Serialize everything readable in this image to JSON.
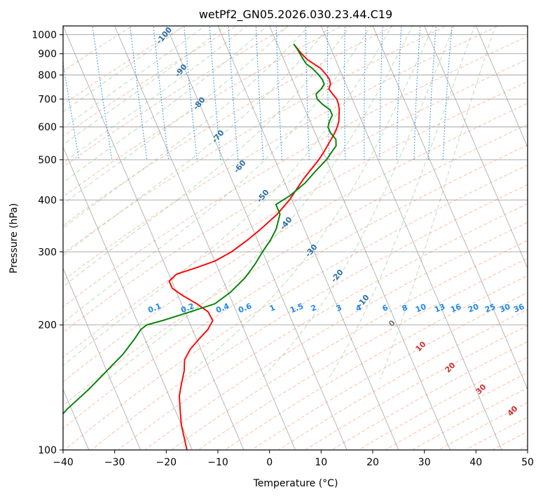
{
  "chart_data": {
    "type": "line",
    "diagram": "skew-t log-p",
    "title": "wetPf2_GN05.2026.030.23.44.C19",
    "xlabel": "Temperature (°C)",
    "ylabel": "Pressure (hPa)",
    "xlim": [
      -40,
      50
    ],
    "ylim": [
      1050,
      100
    ],
    "yscale": "log",
    "skew": 35,
    "grid": true,
    "x_ticks": [
      -40,
      -30,
      -20,
      -10,
      0,
      10,
      20,
      30,
      40,
      50
    ],
    "y_ticks": [
      1000,
      900,
      800,
      700,
      600,
      500,
      400,
      300,
      200,
      100
    ],
    "series": [
      {
        "key": "temperature",
        "color": "#ff0000",
        "points": [
          [
            950,
            3.2
          ],
          [
            920,
            3.6
          ],
          [
            900,
            3.9
          ],
          [
            870,
            4.6
          ],
          [
            850,
            5.5
          ],
          [
            830,
            6.4
          ],
          [
            800,
            7.0
          ],
          [
            780,
            7.2
          ],
          [
            760,
            7.0
          ],
          [
            740,
            6.3
          ],
          [
            720,
            6.6
          ],
          [
            700,
            7.0
          ],
          [
            680,
            6.9
          ],
          [
            660,
            6.6
          ],
          [
            640,
            6.1
          ],
          [
            620,
            5.6
          ],
          [
            600,
            4.8
          ],
          [
            580,
            3.8
          ],
          [
            560,
            2.6
          ],
          [
            540,
            1.3
          ],
          [
            520,
            0.0
          ],
          [
            500,
            -1.5
          ],
          [
            450,
            -6.0
          ],
          [
            400,
            -10.5
          ],
          [
            370,
            -14.0
          ],
          [
            340,
            -18.5
          ],
          [
            320,
            -22.0
          ],
          [
            300,
            -26.0
          ],
          [
            285,
            -30.0
          ],
          [
            275,
            -34.0
          ],
          [
            265,
            -38.5
          ],
          [
            255,
            -40.5
          ],
          [
            245,
            -40.5
          ],
          [
            235,
            -39.0
          ],
          [
            225,
            -37.0
          ],
          [
            215,
            -35.5
          ],
          [
            205,
            -35.3
          ],
          [
            195,
            -37.0
          ],
          [
            185,
            -39.5
          ],
          [
            175,
            -42.0
          ],
          [
            165,
            -44.0
          ],
          [
            155,
            -45.0
          ],
          [
            145,
            -46.5
          ],
          [
            135,
            -48.0
          ],
          [
            125,
            -49.0
          ],
          [
            115,
            -50.0
          ],
          [
            100,
            -51.0
          ]
        ]
      },
      {
        "key": "dewpoint",
        "color": "#008000",
        "points": [
          [
            950,
            3.2
          ],
          [
            920,
            3.5
          ],
          [
            900,
            3.6
          ],
          [
            870,
            3.8
          ],
          [
            850,
            4.0
          ],
          [
            830,
            4.8
          ],
          [
            800,
            5.5
          ],
          [
            780,
            5.8
          ],
          [
            760,
            5.8
          ],
          [
            740,
            4.8
          ],
          [
            720,
            3.4
          ],
          [
            700,
            3.2
          ],
          [
            680,
            3.8
          ],
          [
            660,
            4.8
          ],
          [
            640,
            4.8
          ],
          [
            620,
            3.8
          ],
          [
            600,
            3.0
          ],
          [
            580,
            3.0
          ],
          [
            560,
            3.5
          ],
          [
            540,
            3.0
          ],
          [
            520,
            1.5
          ],
          [
            500,
            0.0
          ],
          [
            470,
            -3.0
          ],
          [
            440,
            -6.0
          ],
          [
            410,
            -10.0
          ],
          [
            390,
            -13.5
          ],
          [
            370,
            -13.5
          ],
          [
            340,
            -15.5
          ],
          [
            320,
            -17.5
          ],
          [
            300,
            -20.0
          ],
          [
            280,
            -22.5
          ],
          [
            260,
            -25.5
          ],
          [
            240,
            -29.5
          ],
          [
            225,
            -33.5
          ],
          [
            215,
            -39.0
          ],
          [
            205,
            -45.0
          ],
          [
            200,
            -48.5
          ],
          [
            195,
            -50.0
          ],
          [
            185,
            -52.0
          ],
          [
            170,
            -55.5
          ],
          [
            155,
            -60.0
          ],
          [
            140,
            -65.0
          ],
          [
            125,
            -71.0
          ],
          [
            112,
            -76.0
          ],
          [
            100,
            -80.0
          ]
        ]
      }
    ],
    "dry_adiabat_labels": [
      "-100",
      "-90",
      "-80",
      "-70",
      "-60",
      "-50",
      "-40",
      "-30",
      "-20",
      "-10"
    ],
    "moist_adiabat_labels": [
      "0",
      "10",
      "20",
      "30",
      "40"
    ],
    "mixing_ratio_labels": [
      "0.1",
      "0.2",
      "0.4",
      "0.6",
      "1",
      "1.5",
      "2",
      "3",
      "4",
      "6",
      "8",
      "10",
      "13",
      "16",
      "20",
      "25",
      "30",
      "36"
    ],
    "mixing_ratio_values": [
      0.1,
      0.2,
      0.4,
      0.6,
      1,
      1.5,
      2,
      3,
      4,
      6,
      8,
      10,
      13,
      16,
      20,
      25,
      30,
      36
    ],
    "colors": {
      "temperature": "#ff0000",
      "dewpoint": "#008000",
      "dry_adiabat": "#f5a585",
      "moist_adiabat": "#a8d5a2",
      "mixing_ratio": "#1e88e5",
      "dry_label": "#2a6fa8",
      "moist_label_zero": "#777777",
      "moist_label": "#d03030",
      "isotherm": "#888888"
    }
  }
}
